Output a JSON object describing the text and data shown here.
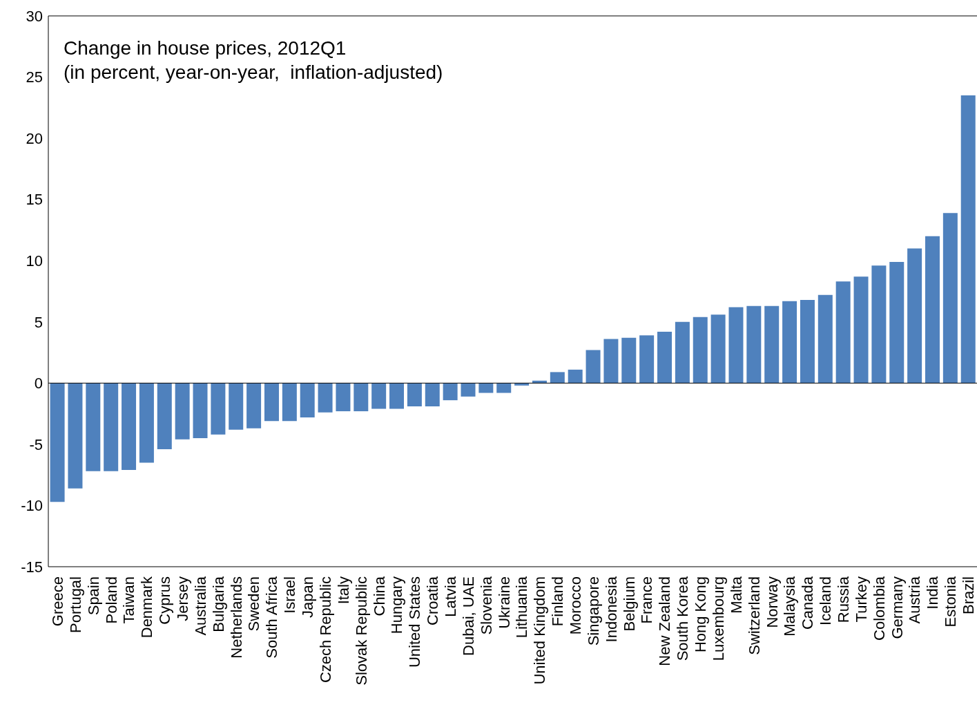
{
  "chart_data": {
    "type": "bar",
    "title": "Change in house prices, 2012Q1",
    "subtitle": "(in percent, year-on-year,  inflation-adjusted)",
    "categories": [
      "Greece",
      "Portugal",
      "Spain",
      "Poland",
      "Taiwan",
      "Denmark",
      "Cyprus",
      "Jersey",
      "Australia",
      "Bulgaria",
      "Netherlands",
      "Sweden",
      "South Africa",
      "Israel",
      "Japan",
      "Czech Republic",
      "Italy",
      "Slovak Republic",
      "China",
      "Hungary",
      "United States",
      "Croatia",
      "Latvia",
      "Dubai, UAE",
      "Slovenia",
      "Ukraine",
      "Lithuania",
      "United Kingdom",
      "Finland",
      "Morocco",
      "Singapore",
      "Indonesia",
      "Belgium",
      "France",
      "New Zealand",
      "South Korea",
      "Hong Kong",
      "Luxembourg",
      "Malta",
      "Switzerland",
      "Norway",
      "Malaysia",
      "Canada",
      "Iceland",
      "Russia",
      "Turkey",
      "Colombia",
      "Germany",
      "Austria",
      "India",
      "Estonia",
      "Brazil"
    ],
    "values": [
      -9.7,
      -8.6,
      -7.2,
      -7.2,
      -7.1,
      -6.5,
      -5.4,
      -4.6,
      -4.5,
      -4.2,
      -3.8,
      -3.7,
      -3.1,
      -3.1,
      -2.8,
      -2.4,
      -2.3,
      -2.3,
      -2.1,
      -2.1,
      -1.9,
      -1.9,
      -1.4,
      -1.1,
      -0.8,
      -0.8,
      -0.2,
      0.2,
      0.9,
      1.1,
      2.7,
      3.6,
      3.7,
      3.9,
      4.2,
      5.0,
      5.4,
      5.6,
      6.2,
      6.3,
      6.3,
      6.7,
      6.8,
      7.2,
      8.3,
      8.7,
      9.6,
      9.9,
      11.0,
      12.0,
      13.9,
      23.5
    ],
    "color": "#4f81bd",
    "ylim": [
      -15,
      30
    ],
    "yticks": [
      -15,
      -10,
      -5,
      0,
      5,
      10,
      15,
      20,
      25,
      30
    ],
    "legend": false
  }
}
